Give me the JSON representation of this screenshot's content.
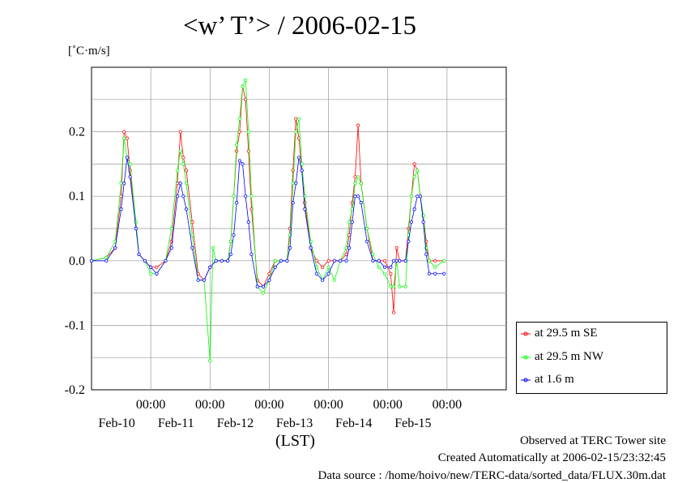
{
  "title": "<w’ T’> / 2006-02-15",
  "unit_label": "[˚C·m/s]",
  "xlabel": "(LST)",
  "footer": {
    "observed": "Observed at TERC Tower site",
    "created": "Created Automatically at 2006-02-15/23:32:45",
    "source": "Data source : /home/hoivo/new/TERC-data/sorted_data/FLUX.30m.dat"
  },
  "chart_data": {
    "type": "line",
    "title": "<w’ T’> / 2006-02-15",
    "ylabel": "[˚C·m/s]",
    "xlabel": "(LST)",
    "ylim": [
      -0.2,
      0.3
    ],
    "xlim": [
      "2006-02-09 00:00",
      "2006-02-15 24:00"
    ],
    "x_unit": "day of February 2006 (LST)",
    "grid": true,
    "legend_position": "bottom-right, outside plot",
    "yticks": [
      -0.2,
      -0.1,
      0.0,
      0.1,
      0.2
    ],
    "ytick_labels": [
      "-0.2",
      "-0.1",
      "0.0",
      "0.1",
      "0.2"
    ],
    "xticks": [
      10,
      11,
      12,
      13,
      14,
      15
    ],
    "xtick_labels_time": [
      "00:00",
      "00:00",
      "00:00",
      "00:00",
      "00:00",
      "00:00"
    ],
    "xtick_labels_date": [
      "Feb-10",
      "Feb-11",
      "Feb-12",
      "Feb-13",
      "Feb-14",
      "Feb-15"
    ],
    "series": [
      {
        "name": "at 29.5 m SE",
        "color": "#ff0000",
        "points": [
          [
            9.0,
            0.0
          ],
          [
            9.25,
            0.005
          ],
          [
            9.4,
            0.02
          ],
          [
            9.5,
            0.1
          ],
          [
            9.55,
            0.2
          ],
          [
            9.6,
            0.19
          ],
          [
            9.65,
            0.14
          ],
          [
            9.75,
            0.06
          ],
          [
            9.8,
            0.01
          ],
          [
            9.9,
            0.0
          ],
          [
            10.0,
            -0.01
          ],
          [
            10.1,
            -0.01
          ],
          [
            10.25,
            0.0
          ],
          [
            10.35,
            0.03
          ],
          [
            10.45,
            0.12
          ],
          [
            10.5,
            0.2
          ],
          [
            10.55,
            0.16
          ],
          [
            10.6,
            0.14
          ],
          [
            10.7,
            0.06
          ],
          [
            10.8,
            -0.02
          ],
          [
            10.9,
            -0.03
          ],
          [
            11.0,
            -0.01
          ],
          [
            11.1,
            0.0
          ],
          [
            11.2,
            0.0
          ],
          [
            11.3,
            0.0
          ],
          [
            11.35,
            0.03
          ],
          [
            11.4,
            0.1
          ],
          [
            11.45,
            0.17
          ],
          [
            11.5,
            0.2
          ],
          [
            11.55,
            0.27
          ],
          [
            11.6,
            0.25
          ],
          [
            11.65,
            0.17
          ],
          [
            11.7,
            0.08
          ],
          [
            11.8,
            -0.03
          ],
          [
            11.9,
            -0.04
          ],
          [
            12.0,
            -0.02
          ],
          [
            12.1,
            0.0
          ],
          [
            12.2,
            0.0
          ],
          [
            12.3,
            0.0
          ],
          [
            12.35,
            0.05
          ],
          [
            12.4,
            0.14
          ],
          [
            12.45,
            0.22
          ],
          [
            12.5,
            0.19
          ],
          [
            12.55,
            0.14
          ],
          [
            12.6,
            0.09
          ],
          [
            12.7,
            0.02
          ],
          [
            12.8,
            0.0
          ],
          [
            12.9,
            -0.01
          ],
          [
            13.0,
            0.0
          ],
          [
            13.1,
            0.0
          ],
          [
            13.2,
            0.0
          ],
          [
            13.3,
            0.01
          ],
          [
            13.35,
            0.04
          ],
          [
            13.4,
            0.09
          ],
          [
            13.45,
            0.13
          ],
          [
            13.5,
            0.21
          ],
          [
            13.55,
            0.12
          ],
          [
            13.65,
            0.05
          ],
          [
            13.75,
            0.0
          ],
          [
            13.85,
            0.0
          ],
          [
            13.95,
            0.0
          ],
          [
            14.05,
            -0.02
          ],
          [
            14.1,
            -0.08
          ],
          [
            14.15,
            0.02
          ],
          [
            14.2,
            0.0
          ],
          [
            14.3,
            0.0
          ],
          [
            14.35,
            0.05
          ],
          [
            14.4,
            0.1
          ],
          [
            14.45,
            0.15
          ],
          [
            14.5,
            0.14
          ],
          [
            14.55,
            0.1
          ],
          [
            14.6,
            0.07
          ],
          [
            14.65,
            0.03
          ],
          [
            14.7,
            0.0
          ],
          [
            14.8,
            0.0
          ],
          [
            14.95,
            0.0
          ]
        ]
      },
      {
        "name": "at 29.5 m NW",
        "color": "#00ff00",
        "points": [
          [
            9.0,
            0.0
          ],
          [
            9.25,
            0.005
          ],
          [
            9.4,
            0.03
          ],
          [
            9.5,
            0.12
          ],
          [
            9.55,
            0.19
          ],
          [
            9.6,
            0.16
          ],
          [
            9.65,
            0.15
          ],
          [
            9.75,
            0.06
          ],
          [
            9.8,
            0.01
          ],
          [
            9.9,
            0.0
          ],
          [
            10.0,
            -0.02
          ],
          [
            10.1,
            -0.02
          ],
          [
            10.25,
            0.0
          ],
          [
            10.35,
            0.05
          ],
          [
            10.45,
            0.14
          ],
          [
            10.5,
            0.17
          ],
          [
            10.55,
            0.15
          ],
          [
            10.6,
            0.12
          ],
          [
            10.7,
            0.04
          ],
          [
            10.8,
            -0.03
          ],
          [
            10.9,
            -0.03
          ],
          [
            11.0,
            -0.155
          ],
          [
            11.05,
            0.02
          ],
          [
            11.1,
            0.0
          ],
          [
            11.2,
            0.0
          ],
          [
            11.3,
            0.0
          ],
          [
            11.35,
            0.03
          ],
          [
            11.4,
            0.1
          ],
          [
            11.45,
            0.18
          ],
          [
            11.5,
            0.22
          ],
          [
            11.55,
            0.27
          ],
          [
            11.6,
            0.28
          ],
          [
            11.65,
            0.2
          ],
          [
            11.7,
            0.1
          ],
          [
            11.8,
            -0.04
          ],
          [
            11.9,
            -0.05
          ],
          [
            12.0,
            -0.03
          ],
          [
            12.1,
            0.0
          ],
          [
            12.2,
            0.0
          ],
          [
            12.3,
            0.0
          ],
          [
            12.35,
            0.04
          ],
          [
            12.4,
            0.12
          ],
          [
            12.45,
            0.2
          ],
          [
            12.5,
            0.22
          ],
          [
            12.55,
            0.15
          ],
          [
            12.6,
            0.1
          ],
          [
            12.7,
            0.03
          ],
          [
            12.8,
            -0.01
          ],
          [
            12.9,
            -0.03
          ],
          [
            13.0,
            -0.01
          ],
          [
            13.1,
            -0.03
          ],
          [
            13.2,
            0.0
          ],
          [
            13.3,
            0.02
          ],
          [
            13.35,
            0.06
          ],
          [
            13.4,
            0.08
          ],
          [
            13.45,
            0.12
          ],
          [
            13.5,
            0.13
          ],
          [
            13.55,
            0.12
          ],
          [
            13.65,
            0.05
          ],
          [
            13.75,
            0.01
          ],
          [
            13.85,
            -0.01
          ],
          [
            13.95,
            -0.02
          ],
          [
            14.05,
            -0.04
          ],
          [
            14.1,
            -0.04
          ],
          [
            14.15,
            0.0
          ],
          [
            14.2,
            -0.04
          ],
          [
            14.3,
            -0.04
          ],
          [
            14.35,
            0.04
          ],
          [
            14.4,
            0.1
          ],
          [
            14.45,
            0.13
          ],
          [
            14.5,
            0.14
          ],
          [
            14.55,
            0.1
          ],
          [
            14.6,
            0.07
          ],
          [
            14.65,
            0.02
          ],
          [
            14.7,
            0.0
          ],
          [
            14.8,
            -0.01
          ],
          [
            14.95,
            0.0
          ]
        ]
      },
      {
        "name": "at 1.6 m",
        "color": "#0000ff",
        "points": [
          [
            9.0,
            0.0
          ],
          [
            9.25,
            0.0
          ],
          [
            9.4,
            0.02
          ],
          [
            9.5,
            0.08
          ],
          [
            9.55,
            0.12
          ],
          [
            9.6,
            0.16
          ],
          [
            9.65,
            0.13
          ],
          [
            9.75,
            0.05
          ],
          [
            9.8,
            0.01
          ],
          [
            9.9,
            0.0
          ],
          [
            10.0,
            -0.01
          ],
          [
            10.1,
            -0.02
          ],
          [
            10.25,
            0.0
          ],
          [
            10.35,
            0.02
          ],
          [
            10.45,
            0.1
          ],
          [
            10.5,
            0.12
          ],
          [
            10.55,
            0.1
          ],
          [
            10.6,
            0.08
          ],
          [
            10.7,
            0.02
          ],
          [
            10.8,
            -0.03
          ],
          [
            10.9,
            -0.03
          ],
          [
            11.0,
            -0.01
          ],
          [
            11.1,
            0.0
          ],
          [
            11.2,
            0.0
          ],
          [
            11.3,
            0.0
          ],
          [
            11.35,
            0.01
          ],
          [
            11.4,
            0.04
          ],
          [
            11.45,
            0.09
          ],
          [
            11.5,
            0.155
          ],
          [
            11.55,
            0.15
          ],
          [
            11.6,
            0.1
          ],
          [
            11.65,
            0.06
          ],
          [
            11.7,
            0.01
          ],
          [
            11.8,
            -0.04
          ],
          [
            11.9,
            -0.04
          ],
          [
            12.0,
            -0.03
          ],
          [
            12.1,
            -0.01
          ],
          [
            12.2,
            0.0
          ],
          [
            12.3,
            0.0
          ],
          [
            12.35,
            0.02
          ],
          [
            12.4,
            0.09
          ],
          [
            12.45,
            0.12
          ],
          [
            12.5,
            0.16
          ],
          [
            12.55,
            0.14
          ],
          [
            12.6,
            0.08
          ],
          [
            12.7,
            0.02
          ],
          [
            12.8,
            -0.02
          ],
          [
            12.9,
            -0.03
          ],
          [
            13.0,
            -0.02
          ],
          [
            13.1,
            0.0
          ],
          [
            13.2,
            0.0
          ],
          [
            13.3,
            0.0
          ],
          [
            13.35,
            0.02
          ],
          [
            13.4,
            0.06
          ],
          [
            13.45,
            0.1
          ],
          [
            13.5,
            0.1
          ],
          [
            13.55,
            0.09
          ],
          [
            13.65,
            0.03
          ],
          [
            13.75,
            0.0
          ],
          [
            13.85,
            0.0
          ],
          [
            13.95,
            -0.01
          ],
          [
            14.05,
            -0.01
          ],
          [
            14.1,
            0.0
          ],
          [
            14.15,
            0.0
          ],
          [
            14.2,
            0.0
          ],
          [
            14.3,
            0.0
          ],
          [
            14.35,
            0.03
          ],
          [
            14.4,
            0.06
          ],
          [
            14.45,
            0.08
          ],
          [
            14.5,
            0.1
          ],
          [
            14.55,
            0.1
          ],
          [
            14.6,
            0.06
          ],
          [
            14.65,
            0.01
          ],
          [
            14.7,
            -0.02
          ],
          [
            14.8,
            -0.02
          ],
          [
            14.95,
            -0.02
          ]
        ]
      }
    ]
  }
}
